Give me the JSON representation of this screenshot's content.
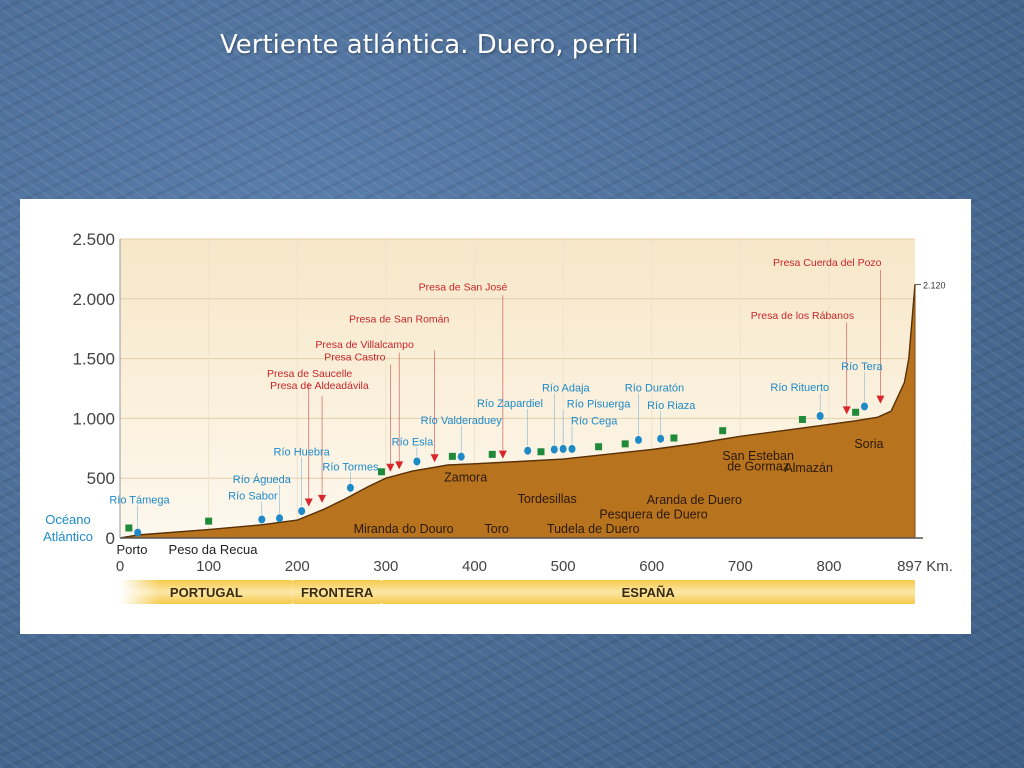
{
  "slide": {
    "title": "Vertiente atlántica. Duero, perfil"
  },
  "chart_data": {
    "type": "area",
    "title": "",
    "x_unit": "Km.",
    "x_ticks": [
      0,
      100,
      200,
      300,
      400,
      500,
      600,
      700,
      800
    ],
    "x_end_label": "897 Km.",
    "y_ticks": [
      0,
      500,
      1000,
      1500,
      2000,
      2500
    ],
    "y_tick_labels": [
      "0",
      "500",
      "1.000",
      "1.500",
      "2.000",
      "2.500"
    ],
    "xlim": [
      0,
      897
    ],
    "ylim": [
      0,
      2500
    ],
    "grid": true,
    "peak_label": "2.120",
    "profile": {
      "x": [
        0,
        20,
        100,
        160,
        200,
        230,
        255,
        280,
        300,
        330,
        370,
        400,
        450,
        500,
        550,
        600,
        650,
        700,
        750,
        800,
        830,
        855,
        870,
        885,
        890,
        897
      ],
      "y": [
        0,
        25,
        70,
        110,
        150,
        240,
        330,
        430,
        500,
        560,
        610,
        620,
        640,
        660,
        700,
        740,
        790,
        850,
        900,
        950,
        980,
        1010,
        1060,
        1300,
        1500,
        2120
      ]
    },
    "start_labels": {
      "ocean_line1": "Océano",
      "ocean_line2": "Atlántico",
      "porto": "Porto",
      "peso": "Peso da Recua"
    },
    "places": [
      {
        "text": "Miranda do Douro",
        "km": 320,
        "elev": 10
      },
      {
        "text": "Zamora",
        "km": 390,
        "elev": 440
      },
      {
        "text": "Toro",
        "km": 425,
        "elev": 10
      },
      {
        "text": "Tordesillas",
        "km": 482,
        "elev": 260
      },
      {
        "text": "Tudela de Duero",
        "km": 534,
        "elev": 10
      },
      {
        "text": "Pesquera de Duero",
        "km": 602,
        "elev": 130
      },
      {
        "text": "Aranda de Duero",
        "km": 648,
        "elev": 250
      },
      {
        "text": "San Esteban",
        "km": 720,
        "elev": 620
      },
      {
        "text": "de Gormaz",
        "km": 720,
        "elev": 530
      },
      {
        "text": "Almazán",
        "km": 777,
        "elev": 520
      },
      {
        "text": "Soria",
        "km": 845,
        "elev": 720
      }
    ],
    "tributaries": [
      {
        "name": "Río Támega",
        "km": 20,
        "dot_elev": 45,
        "label_km": 22,
        "label_elev": 290
      },
      {
        "name": "Río Sabor",
        "km": 160,
        "dot_elev": 155,
        "label_km": 150,
        "label_elev": 320
      },
      {
        "name": "Río Águeda",
        "km": 180,
        "dot_elev": 165,
        "label_km": 160,
        "label_elev": 460
      },
      {
        "name": "Río Huebra",
        "km": 205,
        "dot_elev": 225,
        "label_km": 205,
        "label_elev": 690
      },
      {
        "name": "Río Tormes",
        "km": 260,
        "dot_elev": 420,
        "label_km": 260,
        "label_elev": 565
      },
      {
        "name": "Río Esla",
        "km": 335,
        "dot_elev": 640,
        "label_km": 330,
        "label_elev": 775
      },
      {
        "name": "Río Valderaduey",
        "km": 385,
        "dot_elev": 680,
        "label_km": 385,
        "label_elev": 955
      },
      {
        "name": "Río Zapardiel",
        "km": 460,
        "dot_elev": 730,
        "label_km": 440,
        "label_elev": 1095
      },
      {
        "name": "Río Adaja",
        "km": 490,
        "dot_elev": 740,
        "label_km": 503,
        "label_elev": 1225
      },
      {
        "name": "Río Pisuerga",
        "km": 500,
        "dot_elev": 745,
        "label_km": 540,
        "label_elev": 1090
      },
      {
        "name": "Río Cega",
        "km": 510,
        "dot_elev": 745,
        "label_km": 535,
        "label_elev": 950
      },
      {
        "name": "Río Duratón",
        "km": 585,
        "dot_elev": 820,
        "label_km": 603,
        "label_elev": 1225
      },
      {
        "name": "Río Riaza",
        "km": 610,
        "dot_elev": 830,
        "label_km": 622,
        "label_elev": 1080
      },
      {
        "name": "Río Riaza",
        "km": 610,
        "dot_elev": 830,
        "label_km": 0,
        "label_elev": 0,
        "hidden": true
      },
      {
        "name": "Río Rituerto",
        "km": 790,
        "dot_elev": 1020,
        "label_km": 767,
        "label_elev": 1230
      },
      {
        "name": "Río Tera",
        "km": 840,
        "dot_elev": 1100,
        "label_km": 837,
        "label_elev": 1405
      }
    ],
    "reservoirs": [
      {
        "name": "Presa de Saucelle",
        "km": 213,
        "marker_elev": 230,
        "line_top_elev": 1300,
        "label_km": 214,
        "label_elev": 1345
      },
      {
        "name": "Presa de Aldeadávila",
        "km": 228,
        "marker_elev": 260,
        "line_top_elev": 1190,
        "label_km": 225,
        "label_elev": 1245
      },
      {
        "name": "Presa Castro",
        "km": 305,
        "marker_elev": 520,
        "line_top_elev": 1450,
        "label_km": 265,
        "label_elev": 1485
      },
      {
        "name": "Presa de Villalcampo",
        "km": 315,
        "marker_elev": 540,
        "line_top_elev": 1550,
        "label_km": 276,
        "label_elev": 1590
      },
      {
        "name": "Presa de San Román",
        "km": 355,
        "marker_elev": 600,
        "line_top_elev": 1570,
        "label_km": 315,
        "label_elev": 1800
      },
      {
        "name": "Presa de San José",
        "km": 432,
        "marker_elev": 630,
        "line_top_elev": 2030,
        "label_km": 387,
        "label_elev": 2070
      },
      {
        "name": "Presa de los Rábanos",
        "km": 820,
        "marker_elev": 1000,
        "line_top_elev": 1800,
        "label_km": 770,
        "label_elev": 1830
      },
      {
        "name": "Presa Cuerda del Pozo",
        "km": 858,
        "marker_elev": 1090,
        "line_top_elev": 2240,
        "label_km": 798,
        "label_elev": 2275
      }
    ],
    "gauging_stations_km": [
      10,
      100,
      295,
      375,
      420,
      475,
      540,
      570,
      625,
      680,
      770,
      830
    ],
    "regions": [
      {
        "label": "PORTUGAL",
        "from_km": 0,
        "to_km": 195
      },
      {
        "label": "FRONTERA",
        "from_km": 195,
        "to_km": 295
      },
      {
        "label": "ESPAÑA",
        "from_km": 295,
        "to_km": 897
      }
    ]
  }
}
